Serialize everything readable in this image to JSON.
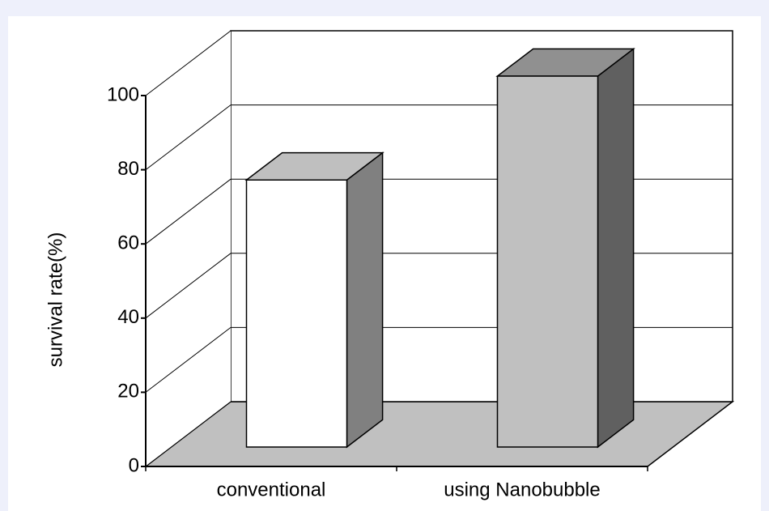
{
  "chart_data": {
    "type": "bar3d",
    "y_label": "survival rate(%)",
    "categories": [
      "conventional",
      "using Nanobubble"
    ],
    "values": [
      72,
      100
    ],
    "colors": [
      "#ffffff",
      "#c0c0c0"
    ],
    "ylim": [
      0,
      100
    ],
    "yticks": [
      0,
      20,
      40,
      60,
      80,
      100
    ],
    "grid": true
  }
}
